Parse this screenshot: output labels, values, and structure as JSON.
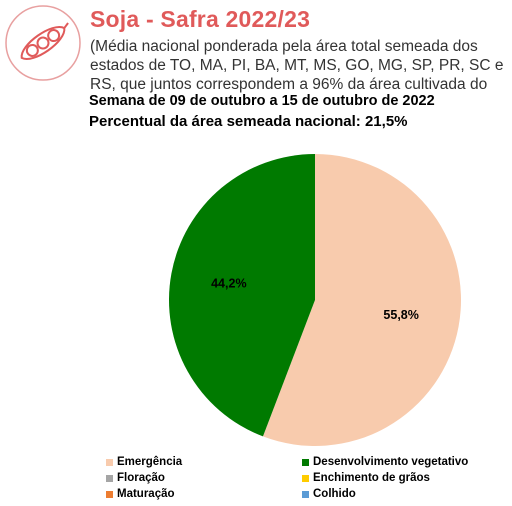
{
  "header": {
    "title": "Soja - Safra 2022/23",
    "subtitle": "(Média nacional ponderada pela área total semeada dos estados de TO, MA, PI, BA, MT, MS, GO, MG, SP, PR, SC e RS, que juntos correspondem a 96% da área cultivada do",
    "week": "Semana de 09 de outubro a 15 de outubro de 2022",
    "percent_sown": "Percentual da área semeada nacional: 21,5%",
    "logo_icon": "soybean-pod-icon",
    "accent_color": "#e05a5a"
  },
  "chart_data": {
    "type": "pie",
    "title": "Soja - Safra 2022/23",
    "categories": [
      "Emergência",
      "Desenvolvimento vegetativo",
      "Floração",
      "Enchimento de grãos",
      "Maturação",
      "Colhido"
    ],
    "values": [
      55.8,
      44.2,
      0,
      0,
      0,
      0
    ],
    "labels": [
      "55,8%",
      "44,2%",
      "",
      "",
      "",
      ""
    ],
    "colors": [
      "#f8cbad",
      "#007a00",
      "#a5a5a5",
      "#ffcc00",
      "#ed7d31",
      "#5b9bd5"
    ],
    "legend_position": "bottom"
  }
}
